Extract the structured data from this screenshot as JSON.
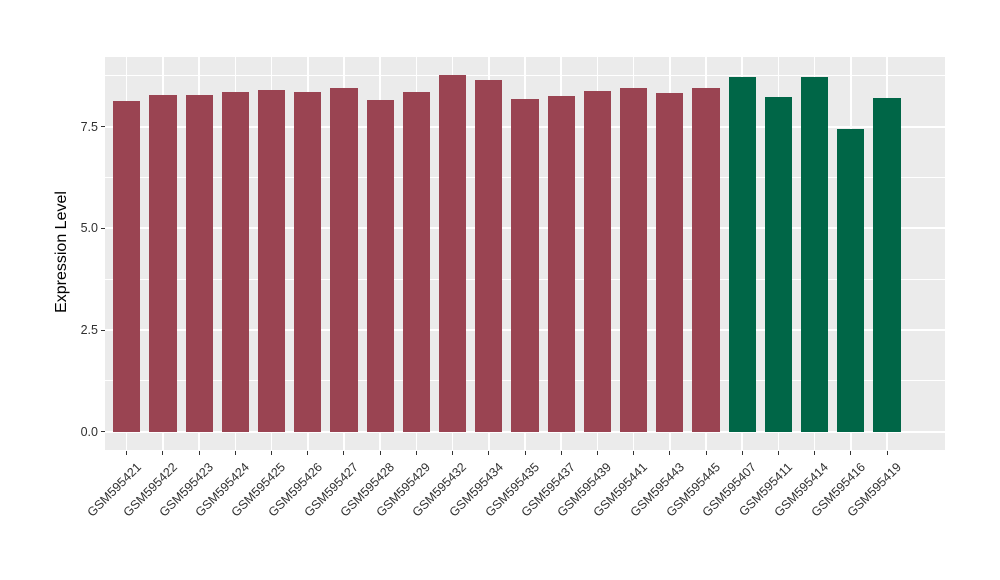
{
  "chart_data": {
    "type": "bar",
    "title": "",
    "ylabel": "Expression Level",
    "xlabel": "",
    "categories": [
      "GSM595421",
      "GSM595422",
      "GSM595423",
      "GSM595424",
      "GSM595425",
      "GSM595426",
      "GSM595427",
      "GSM595428",
      "GSM595429",
      "GSM595432",
      "GSM595434",
      "GSM595435",
      "GSM595437",
      "GSM595439",
      "GSM595441",
      "GSM595443",
      "GSM595445",
      "GSM595407",
      "GSM595411",
      "GSM595414",
      "GSM595416",
      "GSM595419"
    ],
    "values": [
      8.14,
      8.29,
      8.29,
      8.36,
      8.4,
      8.36,
      8.45,
      8.15,
      8.35,
      8.78,
      8.65,
      8.17,
      8.26,
      8.37,
      8.44,
      8.33,
      8.45,
      8.71,
      8.22,
      8.72,
      7.44,
      8.21
    ],
    "bar_colors": [
      "#9A4452",
      "#9A4452",
      "#9A4452",
      "#9A4452",
      "#9A4452",
      "#9A4452",
      "#9A4452",
      "#9A4452",
      "#9A4452",
      "#9A4452",
      "#9A4452",
      "#9A4452",
      "#9A4452",
      "#9A4452",
      "#9A4452",
      "#9A4452",
      "#9A4452",
      "#006647",
      "#006647",
      "#006647",
      "#006647",
      "#006647"
    ],
    "group_colors": {
      "maroon": "#9A4452",
      "green": "#006647"
    },
    "yticks": {
      "values": [
        0.0,
        2.5,
        5.0,
        7.5
      ],
      "labels": [
        "0.0",
        "2.5",
        "5.0",
        "7.5"
      ]
    },
    "minor_grid_values": [
      1.25,
      3.75,
      6.25,
      8.75
    ],
    "ylim": [
      -0.44,
      9.22
    ],
    "grid": true,
    "legend_position": "none",
    "panel_background": "#EBEBEB",
    "gridline_color": "#FFFFFF",
    "tick_color": "#333333"
  }
}
